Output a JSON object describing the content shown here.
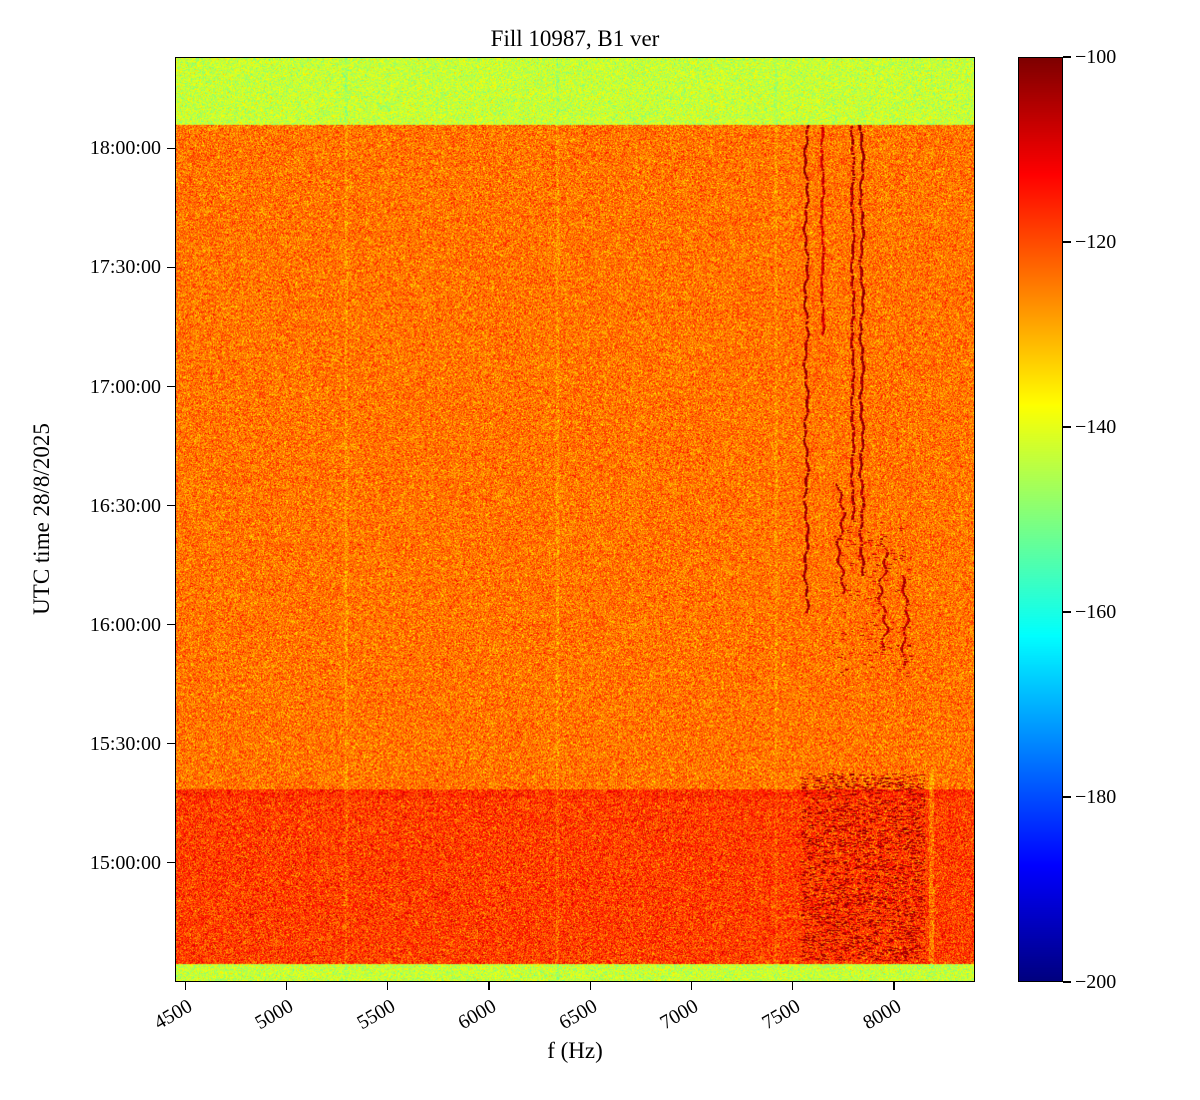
{
  "chart_data": {
    "type": "heatmap",
    "title": "Fill 10987, B1 ver",
    "xlabel": "f (Hz)",
    "ylabel": "UTC time 28/8/2025",
    "x_axis": {
      "min": 4450,
      "max": 8400,
      "tick_values": [
        4500,
        5000,
        5500,
        6000,
        6500,
        7000,
        7500,
        8000
      ]
    },
    "y_axis": {
      "top_time": "18:23:00",
      "bottom_time": "14:30:00",
      "tick_labels": [
        "18:00:00",
        "17:30:00",
        "17:00:00",
        "16:30:00",
        "16:00:00",
        "15:30:00",
        "15:00:00"
      ]
    },
    "colorbar": {
      "min": -200,
      "max": -100,
      "tick_values": [
        -100,
        -120,
        -140,
        -160,
        -180,
        -200
      ],
      "colormap": "jet"
    },
    "bands": [
      {
        "t_from": 0.0,
        "t_to": 0.0724,
        "mean_db": -143.0,
        "noise_db": 4.0
      },
      {
        "t_from": 0.0724,
        "t_to": 0.792,
        "mean_db": -124.0,
        "noise_db": 5.0
      },
      {
        "t_from": 0.792,
        "t_to": 0.802,
        "mean_db": -117.0,
        "noise_db": 5.0
      },
      {
        "t_from": 0.802,
        "t_to": 0.9816,
        "mean_db": -118.5,
        "noise_db": 5.5
      },
      {
        "t_from": 0.9816,
        "t_to": 1.01,
        "mean_db": -143.0,
        "noise_db": 4.0
      }
    ],
    "features": {
      "faint_vertical_lines": [
        {
          "f": 5290,
          "delta_db": -3.0,
          "width_hz": 8
        },
        {
          "f": 6340,
          "delta_db": -3.0,
          "width_hz": 8
        },
        {
          "f": 7420,
          "delta_db": -2.5,
          "width_hz": 8
        }
      ],
      "strong_lines": [
        {
          "f": 7570,
          "t_from": 0.072,
          "t_to": 0.6,
          "db": -103,
          "wiggle_hz": 10
        },
        {
          "f": 7650,
          "t_from": 0.072,
          "t_to": 0.3,
          "db": -108,
          "wiggle_hz": 6
        },
        {
          "f": 7800,
          "t_from": 0.072,
          "t_to": 0.5,
          "db": -104,
          "wiggle_hz": 7
        },
        {
          "f": 7845,
          "t_from": 0.072,
          "t_to": 0.56,
          "db": -103,
          "wiggle_hz": 9
        },
        {
          "f": 7740,
          "t_from": 0.46,
          "t_to": 0.58,
          "db": -105,
          "wiggle_hz": 18
        },
        {
          "f": 7950,
          "t_from": 0.52,
          "t_to": 0.645,
          "db": -105,
          "wiggle_hz": 22
        },
        {
          "f": 8060,
          "t_from": 0.56,
          "t_to": 0.66,
          "db": -106,
          "wiggle_hz": 15
        }
      ],
      "speckle_regions": [
        {
          "f_from": 7540,
          "f_to": 8160,
          "t_from": 0.775,
          "t_to": 0.978,
          "density": 0.25,
          "db": -104
        },
        {
          "f_from": 7700,
          "f_to": 8100,
          "t_from": 0.5,
          "t_to": 0.67,
          "density": 0.035,
          "db": -107
        }
      ],
      "dark_column": {
        "f": 8190,
        "t_from": 0.77,
        "t_to": 0.985,
        "delta_db": -6,
        "width_hz": 12
      }
    }
  }
}
